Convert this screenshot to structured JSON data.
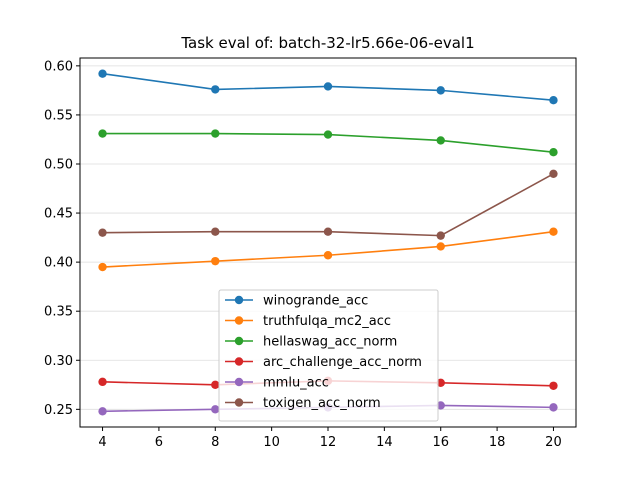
{
  "chart_data": {
    "type": "line",
    "title": "Task eval of: batch-32-lr5.66e-06-eval1",
    "xlabel": "",
    "ylabel": "",
    "x": [
      4,
      8,
      12,
      16,
      20
    ],
    "xlim": [
      3.2,
      20.8
    ],
    "ylim": [
      0.232,
      0.608
    ],
    "xticks": [
      4,
      6,
      8,
      10,
      12,
      14,
      16,
      18,
      20
    ],
    "xtick_labels": [
      "4",
      "6",
      "8",
      "10",
      "12",
      "14",
      "16",
      "18",
      "20"
    ],
    "yticks": [
      0.25,
      0.3,
      0.35,
      0.4,
      0.45,
      0.5,
      0.55,
      0.6
    ],
    "ytick_labels": [
      "0.25",
      "0.30",
      "0.35",
      "0.40",
      "0.45",
      "0.50",
      "0.55",
      "0.60"
    ],
    "grid": "horizontal",
    "legend_position": "lower-center",
    "series": [
      {
        "name": "winogrande_acc",
        "color": "#1f77b4",
        "values": [
          0.592,
          0.576,
          0.579,
          0.575,
          0.565
        ]
      },
      {
        "name": "truthfulqa_mc2_acc",
        "color": "#ff7f0e",
        "values": [
          0.395,
          0.401,
          0.407,
          0.416,
          0.431
        ]
      },
      {
        "name": "hellaswag_acc_norm",
        "color": "#2ca02c",
        "values": [
          0.531,
          0.531,
          0.53,
          0.524,
          0.512
        ]
      },
      {
        "name": "arc_challenge_acc_norm",
        "color": "#d62728",
        "values": [
          0.278,
          0.275,
          0.279,
          0.277,
          0.274
        ]
      },
      {
        "name": "mmlu_acc",
        "color": "#9467bd",
        "values": [
          0.248,
          0.25,
          0.252,
          0.254,
          0.252
        ]
      },
      {
        "name": "toxigen_acc_norm",
        "color": "#8c564b",
        "values": [
          0.43,
          0.431,
          0.431,
          0.427,
          0.49
        ]
      }
    ]
  }
}
